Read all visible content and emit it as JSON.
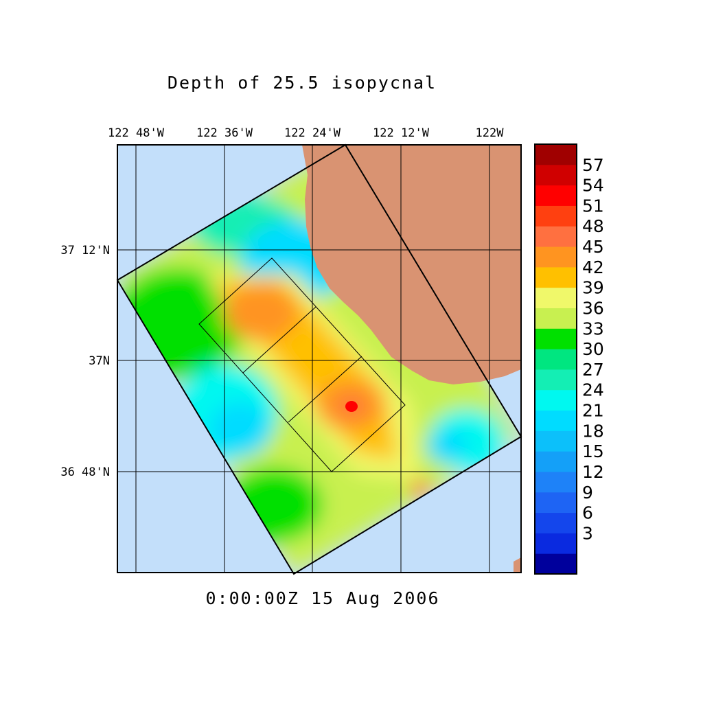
{
  "title": "Depth of 25.5 isopycnal",
  "timestamp": "0:00:00Z  15 Aug 2006",
  "longitude_labels": [
    "122 48'W",
    "122 36'W",
    "122 24'W",
    "122 12'W",
    "122W"
  ],
  "latitude_labels": [
    "37 12'N",
    "37N",
    "36 48'N"
  ],
  "colorbar": {
    "labels": [
      "57",
      "54",
      "51",
      "48",
      "45",
      "42",
      "39",
      "36",
      "33",
      "30",
      "27",
      "24",
      "21",
      "18",
      "15",
      "12",
      "9",
      "6",
      "3"
    ],
    "colors": [
      "#00009c",
      "#0a2ae0",
      "#1446ec",
      "#1e64f4",
      "#1e82f8",
      "#14a0f8",
      "#0cc0fa",
      "#00dcff",
      "#00f8f0",
      "#14eeb4",
      "#00e680",
      "#00e000",
      "#c8f050",
      "#f0f86a",
      "#ffc000",
      "#ff9420",
      "#ff7040",
      "#ff4010",
      "#ff0000",
      "#d00000",
      "#a00000"
    ]
  },
  "colors": {
    "ocean": "#c3dffa",
    "land": "#d99372",
    "grid": "#000000"
  }
}
